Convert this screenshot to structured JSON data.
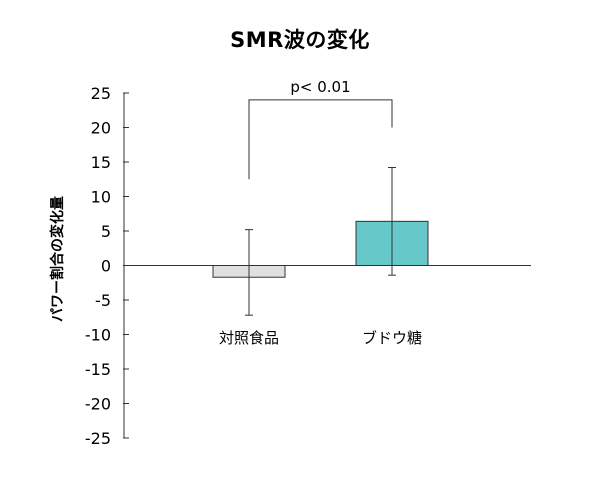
{
  "chart_data": {
    "type": "bar",
    "title": "SMR波の変化",
    "xlabel": "",
    "ylabel": "パワー割合の変化量",
    "categories": [
      "対照食品",
      "ブドウ糖"
    ],
    "series": [
      {
        "values": [
          -1.7,
          6.4
        ],
        "error": [
          [
            -7.2,
            5.2
          ],
          [
            -1.4,
            14.2
          ]
        ]
      }
    ],
    "colors": [
      "#e0e0e0",
      "#66c8c8"
    ],
    "ylim": [
      -25,
      25
    ],
    "yticks": [
      25,
      20,
      15,
      10,
      5,
      0,
      -5,
      -10,
      -15,
      -20,
      -25
    ],
    "annotation": {
      "text": "p< 0.01",
      "bracket_top": 24,
      "left_end": 12.5,
      "right_end": 20
    },
    "grid": false,
    "legend": "none"
  }
}
